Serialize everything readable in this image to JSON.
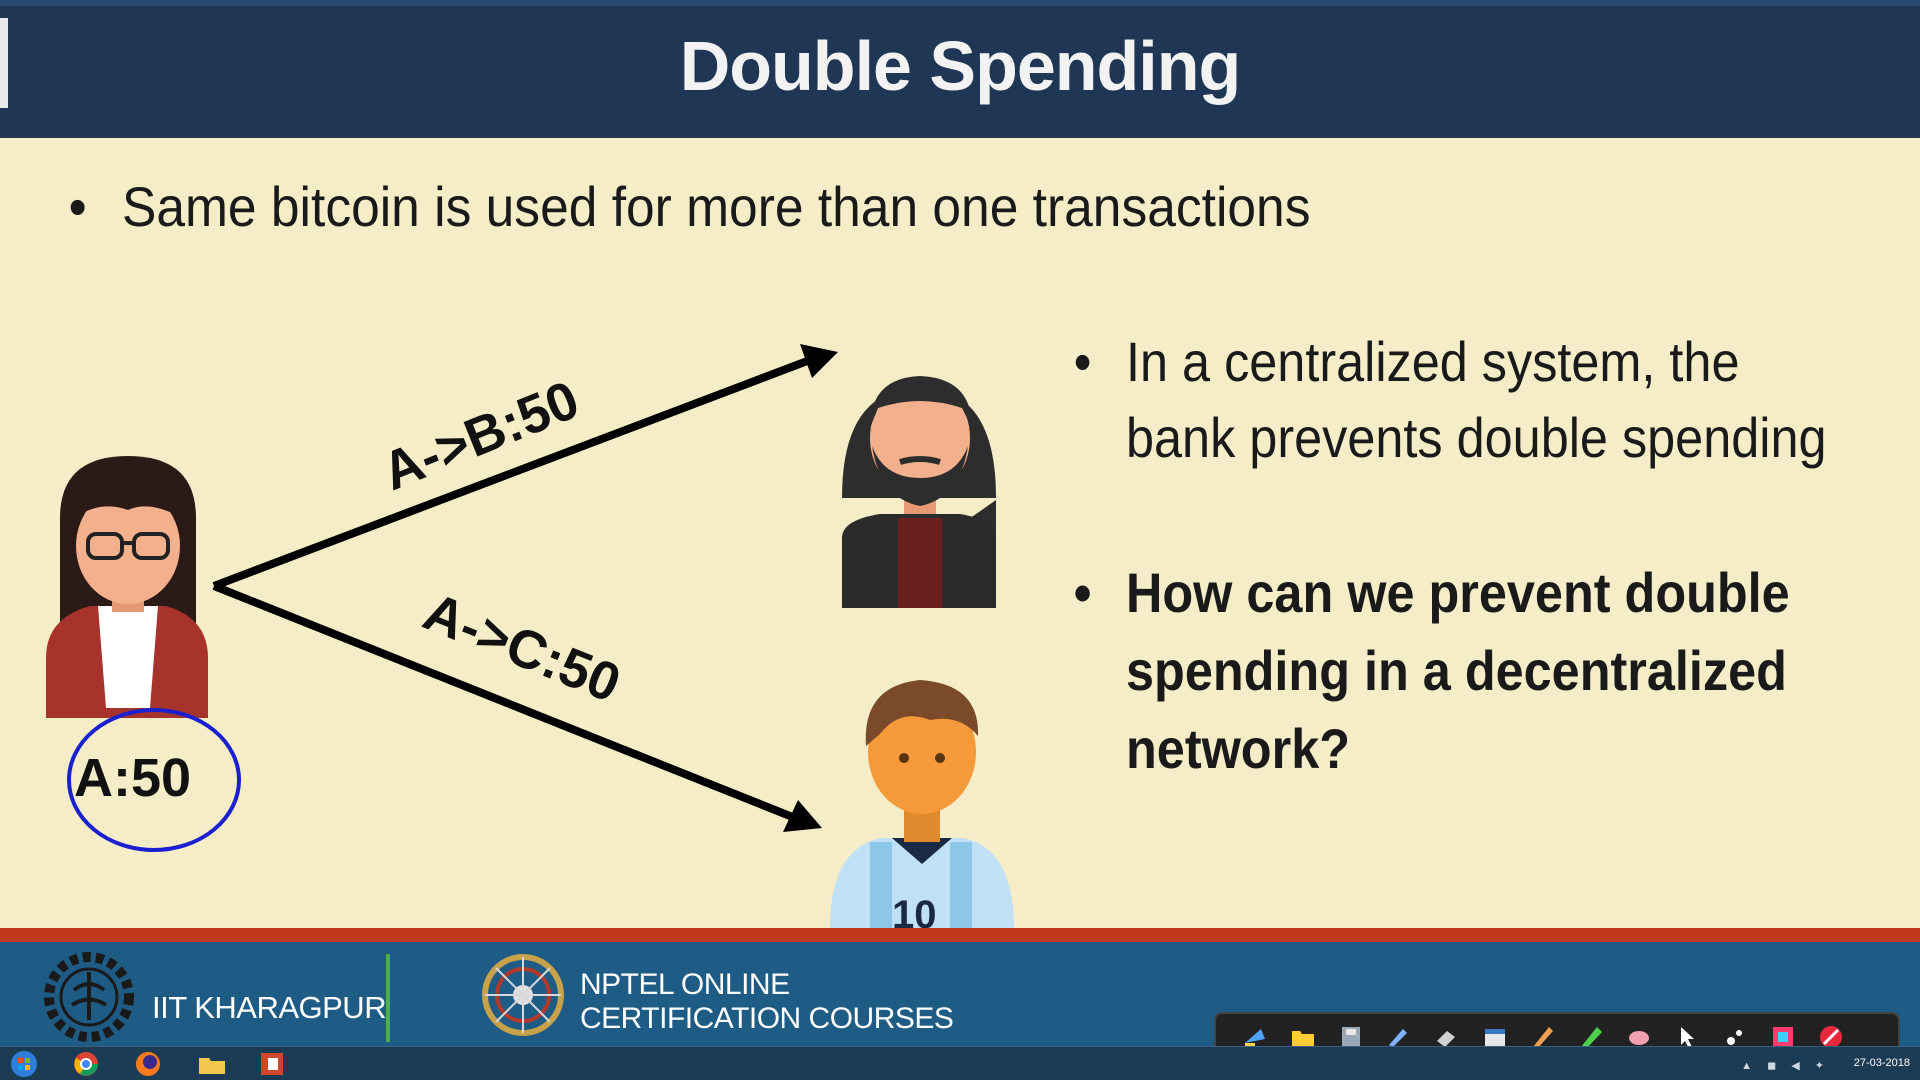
{
  "slide": {
    "title": "Double Spending",
    "bullets": [
      "Same bitcoin is used for more than one transactions",
      "In a centralized system, the bank prevents double spending",
      "How can we prevent double spending in a decentralized network?"
    ],
    "bullet_symbol": "•",
    "diagram": {
      "sender_balance": "A:50",
      "tx_to_b": "A->B:50",
      "tx_to_c": "A->C:50",
      "receiver_c_jersey_number": "10"
    }
  },
  "footer": {
    "institute": "IIT KHARAGPUR",
    "nptel_line1": "NPTEL ONLINE",
    "nptel_line2": "CERTIFICATION COURSES",
    "annotation_tools": [
      "pointer-icon",
      "folder-icon",
      "save-icon",
      "pen-icon",
      "eraser-icon",
      "calendar-icon",
      "pencil-icon",
      "highlighter-icon",
      "clear-icon",
      "cursor-icon",
      "laser-icon",
      "color-icon",
      "stop-icon"
    ]
  },
  "taskbar": {
    "apps": [
      "start-orb-icon",
      "chrome-icon",
      "firefox-icon",
      "explorer-icon",
      "powerpoint-icon"
    ],
    "clock": "27-03-2018"
  },
  "colors": {
    "header_bg": "#1f3654",
    "slide_bg": "#f5edc7",
    "footer_bg": "#1e5c86",
    "footer_stripe": "#c0391f",
    "ink_circle": "#1a1fd0"
  }
}
